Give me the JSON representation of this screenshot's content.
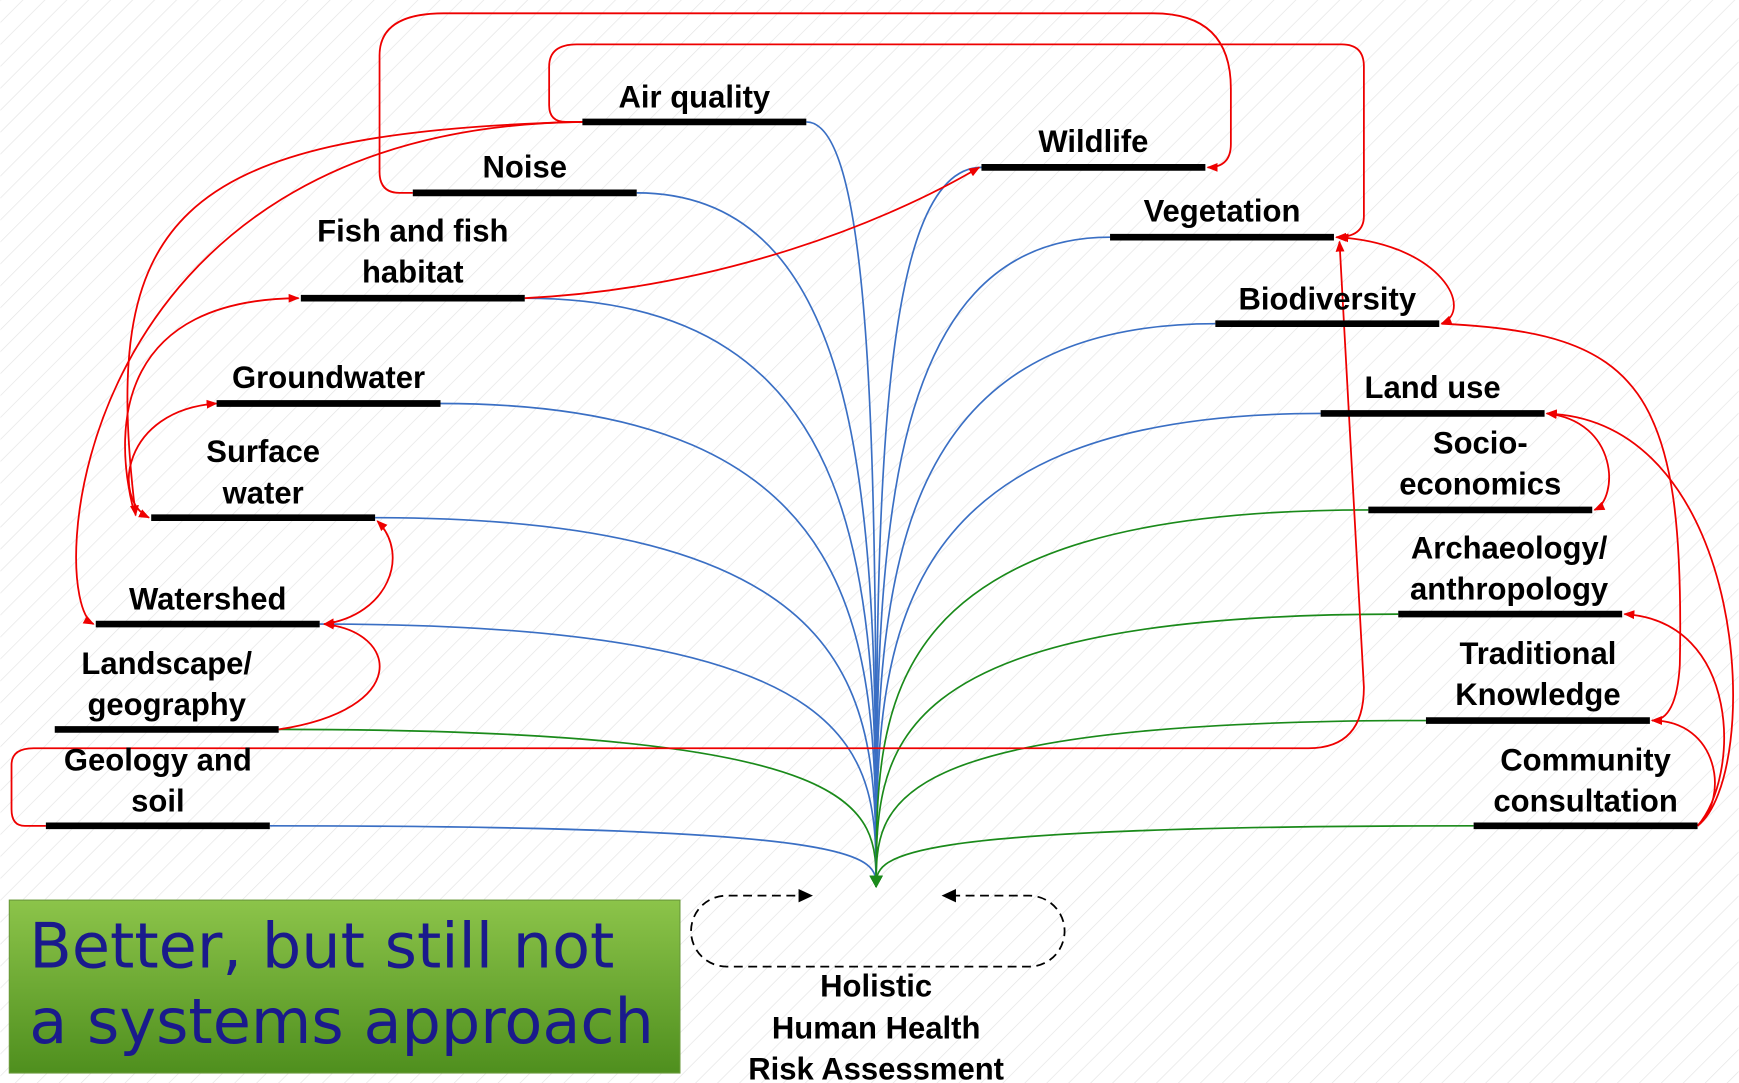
{
  "nodes": [
    {
      "lines": [
        "Air quality"
      ]
    },
    {
      "lines": [
        "Noise"
      ]
    },
    {
      "lines": [
        "Fish and fish",
        "habitat"
      ]
    },
    {
      "lines": [
        "Groundwater"
      ]
    },
    {
      "lines": [
        "Surface",
        "water"
      ]
    },
    {
      "lines": [
        "Watershed"
      ]
    },
    {
      "lines": [
        "Landscape/",
        "geography"
      ]
    },
    {
      "lines": [
        "Geology and",
        "soil"
      ]
    },
    {
      "lines": [
        "Wildlife"
      ]
    },
    {
      "lines": [
        "Vegetation"
      ]
    },
    {
      "lines": [
        "Biodiversity"
      ]
    },
    {
      "lines": [
        "Land use"
      ]
    },
    {
      "lines": [
        "Socio-",
        "economics"
      ]
    },
    {
      "lines": [
        "Archaeology/",
        "anthropology"
      ]
    },
    {
      "lines": [
        "Traditional",
        "Knowledge"
      ]
    },
    {
      "lines": [
        "Community",
        "consultation"
      ]
    }
  ],
  "slogan": [
    "Better, but still not",
    "a systems approach"
  ],
  "center": [
    "Holistic",
    "Human Health",
    "Risk Assessment"
  ]
}
